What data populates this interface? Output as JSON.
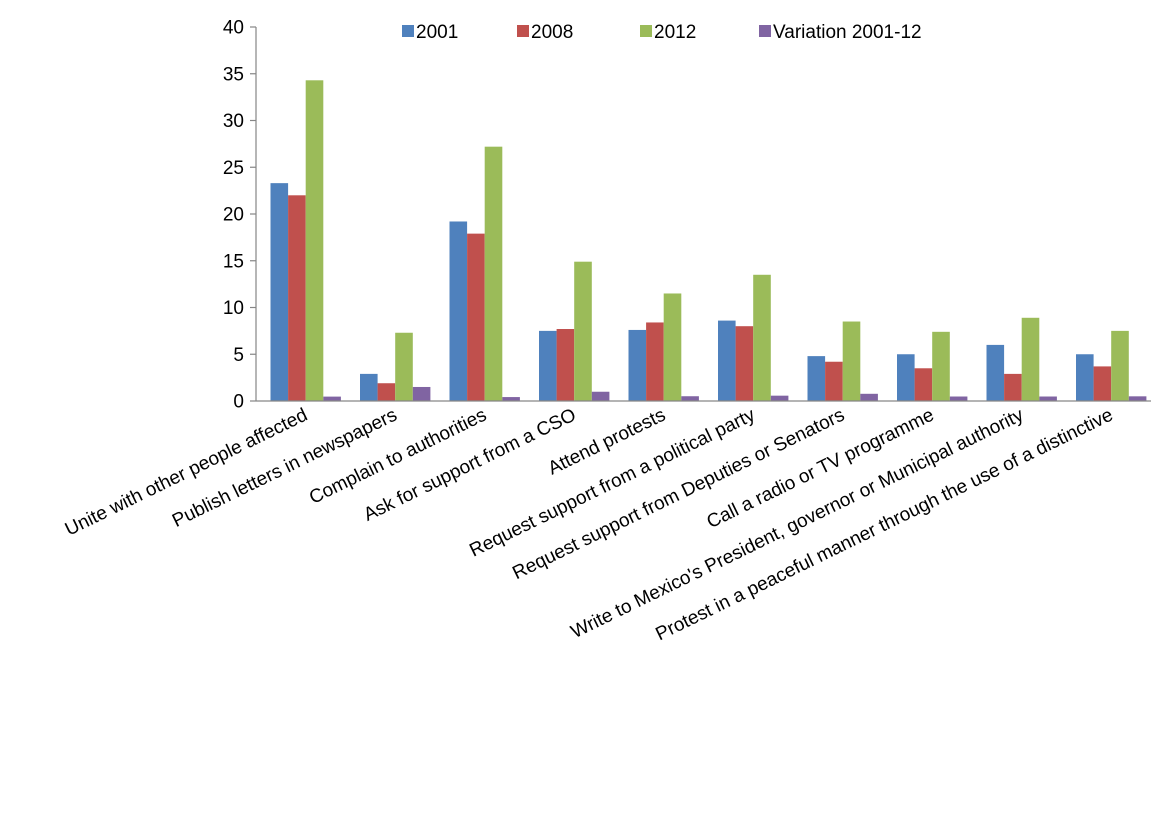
{
  "chart_data": {
    "type": "bar",
    "title": "",
    "xlabel": "",
    "ylabel": "",
    "ylim": [
      0,
      40
    ],
    "y_ticks": [
      0,
      5,
      10,
      15,
      20,
      25,
      30,
      35,
      40
    ],
    "grid": false,
    "legend_position": "top",
    "categories": [
      "Unite with other people affected",
      "Publish letters in newspapers",
      "Complain to authorities",
      "Ask for support from a CSO",
      "Attend protests",
      "Request support from a political party",
      "Request support from Deputies or Senators",
      "Call a radio or TV programme",
      "Write to Mexico's President, governor or Municipal authority",
      "Protest in a peaceful manner through the use of a distinctive"
    ],
    "series": [
      {
        "name": "2001",
        "color": "#4f81bd",
        "values": [
          23.3,
          2.9,
          19.2,
          7.5,
          7.6,
          8.6,
          4.8,
          5.0,
          6.0,
          5.0
        ]
      },
      {
        "name": "2008",
        "color": "#c0504d",
        "values": [
          22.0,
          1.9,
          17.9,
          7.7,
          8.4,
          8.0,
          4.2,
          3.5,
          2.9,
          3.7
        ]
      },
      {
        "name": "2012",
        "color": "#9bbb59",
        "values": [
          34.3,
          7.3,
          27.2,
          14.9,
          11.5,
          13.5,
          8.5,
          7.4,
          8.9,
          7.5
        ]
      },
      {
        "name": "Variation 2001-12",
        "color": "#8064a2",
        "values": [
          0.47,
          1.5,
          0.42,
          0.99,
          0.51,
          0.57,
          0.77,
          0.48,
          0.48,
          0.5
        ]
      }
    ]
  }
}
